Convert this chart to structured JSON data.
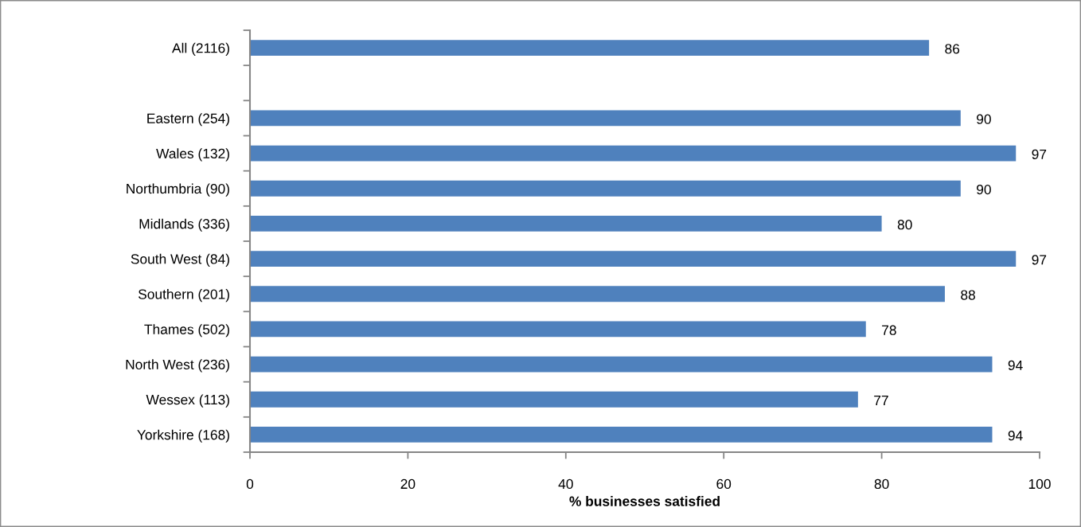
{
  "chart_data": {
    "type": "bar",
    "orientation": "horizontal",
    "categories": [
      "All (2116)",
      null,
      "Eastern (254)",
      "Wales (132)",
      "Northumbria (90)",
      "Midlands (336)",
      "South West (84)",
      "Southern (201)",
      "Thames (502)",
      "North West (236)",
      "Wessex (113)",
      "Yorkshire (168)"
    ],
    "values": [
      86,
      null,
      90,
      97,
      90,
      80,
      97,
      88,
      78,
      94,
      77,
      94
    ],
    "color": "#4f81bd",
    "xlabel": "% businesses satisfied",
    "xlim": [
      0,
      100
    ],
    "xticks": [
      0,
      20,
      40,
      60,
      80,
      100
    ],
    "data_labels": true
  }
}
